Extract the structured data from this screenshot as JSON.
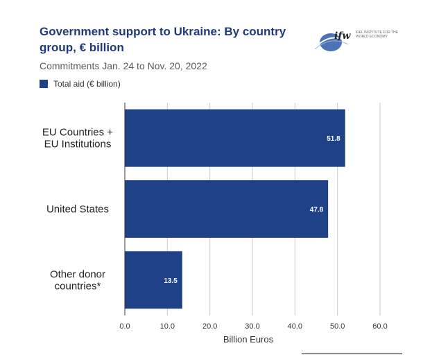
{
  "header": {
    "title": "Government support to Ukraine: By country group, € billion",
    "subtitle": "Commitments Jan. 24 to Nov. 20, 2022",
    "logo_text": "ifw",
    "logo_subtext": "KIEL INSTITUTE FOR THE WORLD ECONOMY"
  },
  "colors": {
    "bar": "#1f4188",
    "title": "#1f3a7a",
    "grid": "#c8c8c8"
  },
  "chart_data": {
    "type": "bar",
    "orientation": "horizontal",
    "title": "Government support to Ukraine: By country group, € billion",
    "categories": [
      "EU Countries + EU Institutions",
      "United States",
      "Other donor countries*"
    ],
    "category_lines": [
      [
        "EU Countries +",
        "EU Institutions"
      ],
      [
        "United States"
      ],
      [
        "Other donor",
        "countries*"
      ]
    ],
    "series": [
      {
        "name": "Total aid (€ billion)",
        "values": [
          51.8,
          47.8,
          13.5
        ]
      }
    ],
    "value_labels": [
      "51.8",
      "47.8",
      "13.5"
    ],
    "xlabel": "Billion Euros",
    "ylabel": "",
    "xlim": [
      0,
      60
    ],
    "xticks": [
      "0.0",
      "10.0",
      "20.0",
      "30.0",
      "40.0",
      "50.0",
      "60.0"
    ],
    "grid": true,
    "legend_position": "top-left"
  }
}
